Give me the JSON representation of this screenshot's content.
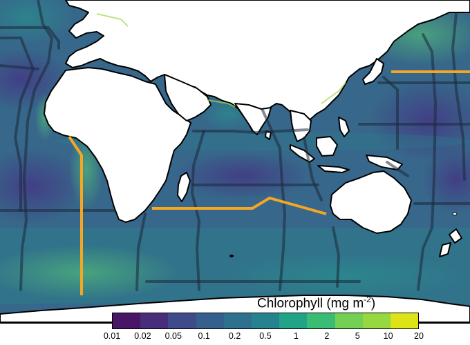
{
  "map": {
    "type": "choropleth-raster",
    "variable": "Chlorophyll",
    "colors": {
      "ocean_base": "#3a6d8c",
      "deep_gyre": "#3f3d8a",
      "land": "#ffffff",
      "coastline": "#000000",
      "transect_dark": "#1a2a38",
      "highlight_transect": "#f5a623"
    },
    "highlight_transects": [
      "west-africa-meridional-transect",
      "south-indian-zonal-transect",
      "north-pacific-zonal-transect"
    ]
  },
  "legend": {
    "title": "Chlorophyll (mg m",
    "title_superscript": "-2",
    "title_close": ")",
    "tick_labels": [
      "0.01",
      "0.02",
      "0.05",
      "0.1",
      "0.2",
      "0.5",
      "1",
      "2",
      "5",
      "10",
      "20"
    ],
    "segment_colors": [
      "#481567",
      "#472d7b",
      "#3e4a89",
      "#35608d",
      "#2d718e",
      "#26828e",
      "#20a386",
      "#3cbb75",
      "#73d055",
      "#95d840",
      "#dce319"
    ]
  }
}
